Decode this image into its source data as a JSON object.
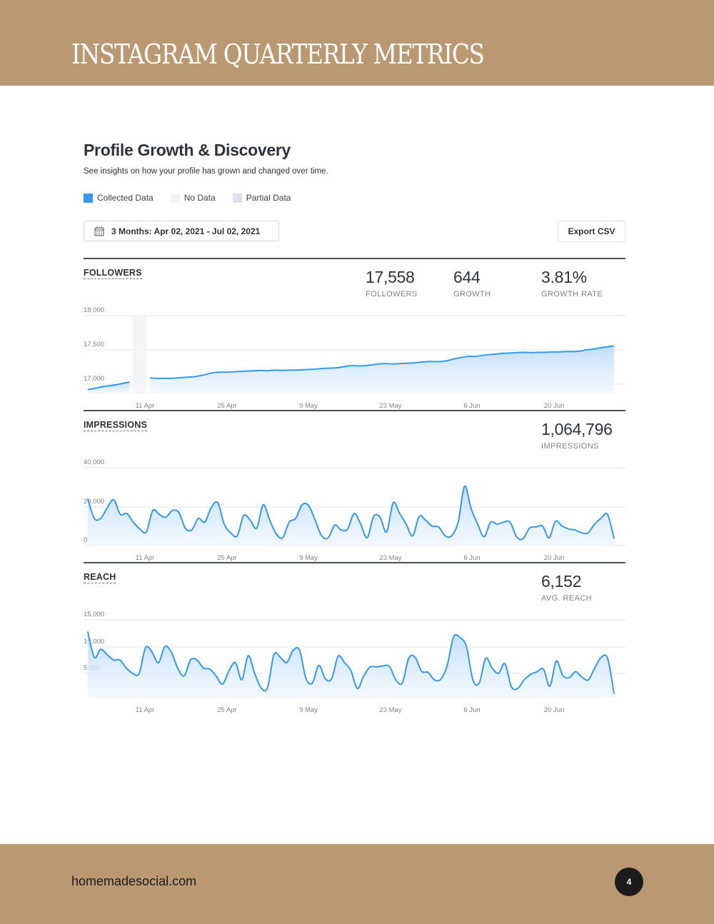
{
  "header": {
    "title": "INSTAGRAM QUARTERLY METRICS",
    "band_color": "#ba9872"
  },
  "section": {
    "title": "Profile Growth & Discovery",
    "subtitle": "See insights on how your profile has grown and changed over time."
  },
  "legend": [
    {
      "label": "Collected Data",
      "color": "#3399f3"
    },
    {
      "label": "No Data",
      "color": "#f3f5f8"
    },
    {
      "label": "Partial Data",
      "color": "#dae1ea"
    }
  ],
  "toolbar": {
    "date_range": "3 Months: Apr 02, 2021 - Jul 02, 2021",
    "date_icon": "calendar-icon",
    "export_label": "Export CSV"
  },
  "followers": {
    "label": "FOLLOWERS",
    "stats": [
      {
        "value": "17,558",
        "label": "FOLLOWERS"
      },
      {
        "value": "644",
        "label": "GROWTH"
      },
      {
        "value": "3.81%",
        "label": "GROWTH RATE"
      }
    ]
  },
  "impressions": {
    "label": "IMPRESSIONS",
    "stats": [
      {
        "value": "1,064,796",
        "label": "IMPRESSIONS"
      }
    ]
  },
  "reach": {
    "label": "REACH",
    "stats": [
      {
        "value": "6,152",
        "label": "AVG. REACH"
      }
    ]
  },
  "footer": {
    "site": "homemadesocial.com",
    "page_number": "4"
  },
  "chart_data": [
    {
      "type": "area",
      "title": "FOLLOWERS",
      "xlabel": "",
      "ylabel": "",
      "x_ticks": [
        "11 Apr",
        "25 Apr",
        "9 May",
        "23 May",
        "6 Jun",
        "20 Jun"
      ],
      "y_ticks": [
        "17,000",
        "17,500",
        "18,000"
      ],
      "ylim": [
        16850,
        18000
      ],
      "grid": true,
      "no_data_range": [
        "Apr 05",
        "Apr 07"
      ],
      "series": [
        {
          "name": "Followers",
          "color": "#3399f3",
          "values": [
            16920,
            16940,
            16960,
            16975,
            16990,
            17010,
            17030,
            null,
            null,
            17090,
            17085,
            17085,
            17085,
            17090,
            17100,
            17105,
            17120,
            17140,
            17165,
            17175,
            17175,
            17180,
            17185,
            17190,
            17195,
            17200,
            17195,
            17205,
            17200,
            17205,
            17205,
            17210,
            17215,
            17220,
            17230,
            17235,
            17240,
            17255,
            17270,
            17265,
            17270,
            17280,
            17295,
            17300,
            17295,
            17300,
            17305,
            17310,
            17320,
            17330,
            17330,
            17330,
            17345,
            17370,
            17390,
            17405,
            17405,
            17420,
            17430,
            17440,
            17450,
            17455,
            17460,
            17465,
            17460,
            17465,
            17465,
            17470,
            17470,
            17475,
            17475,
            17480,
            17500,
            17510,
            17530,
            17545,
            17558
          ]
        }
      ]
    },
    {
      "type": "area",
      "title": "IMPRESSIONS",
      "x_ticks": [
        "11 Apr",
        "25 Apr",
        "9 May",
        "23 May",
        "6 Jun",
        "20 Jun"
      ],
      "y_ticks": [
        "0",
        "20,000",
        "40,000"
      ],
      "ylim": [
        0,
        40000
      ],
      "grid": true,
      "series": [
        {
          "name": "Impressions",
          "color": "#3399f3",
          "values": [
            24000,
            14000,
            14000,
            19500,
            23500,
            16000,
            16500,
            12000,
            8500,
            7000,
            18000,
            16000,
            14500,
            18000,
            17000,
            9000,
            8000,
            14000,
            12000,
            19500,
            22000,
            11000,
            6500,
            5000,
            15500,
            13000,
            9000,
            21000,
            13000,
            6000,
            4000,
            12000,
            14000,
            21000,
            20500,
            13000,
            5000,
            4000,
            10500,
            8000,
            8500,
            16500,
            11000,
            4000,
            15000,
            14500,
            7000,
            22000,
            16500,
            11000,
            5000,
            15000,
            13000,
            10000,
            9500,
            5000,
            5000,
            12000,
            30500,
            19000,
            11000,
            4500,
            12000,
            11000,
            12000,
            12000,
            4500,
            3500,
            9000,
            9500,
            10000,
            4000,
            12500,
            10000,
            8500,
            8000,
            6500,
            6500,
            11000,
            14000,
            16000,
            3500
          ]
        }
      ]
    },
    {
      "type": "area",
      "title": "REACH",
      "x_ticks": [
        "11 Apr",
        "25 Apr",
        "9 May",
        "23 May",
        "6 Jun",
        "20 Jun"
      ],
      "y_ticks": [
        "5,000",
        "10,000",
        "15,000"
      ],
      "ylim": [
        0,
        15000
      ],
      "grid": true,
      "series": [
        {
          "name": "Reach",
          "color": "#3399f3",
          "values": [
            12800,
            8000,
            9500,
            8500,
            7500,
            7500,
            6000,
            5000,
            5000,
            9800,
            9000,
            7000,
            10000,
            9000,
            6000,
            4500,
            7500,
            7500,
            6000,
            5800,
            4500,
            3000,
            5500,
            7000,
            3800,
            8300,
            5000,
            2300,
            2300,
            8500,
            8000,
            7000,
            9300,
            9300,
            4000,
            3200,
            6500,
            4000,
            4000,
            8200,
            7000,
            5500,
            2200,
            4500,
            6200,
            6200,
            6400,
            6300,
            3800,
            3200,
            7800,
            8000,
            5400,
            5200,
            3800,
            3900,
            6500,
            11800,
            11700,
            10000,
            3800,
            3200,
            7800,
            6000,
            5000,
            6800,
            2500,
            2200,
            3800,
            4800,
            5300,
            5800,
            2600,
            7300,
            4600,
            4200,
            5300,
            4300,
            3800,
            6000,
            8000,
            7800,
            1200
          ]
        }
      ]
    }
  ]
}
